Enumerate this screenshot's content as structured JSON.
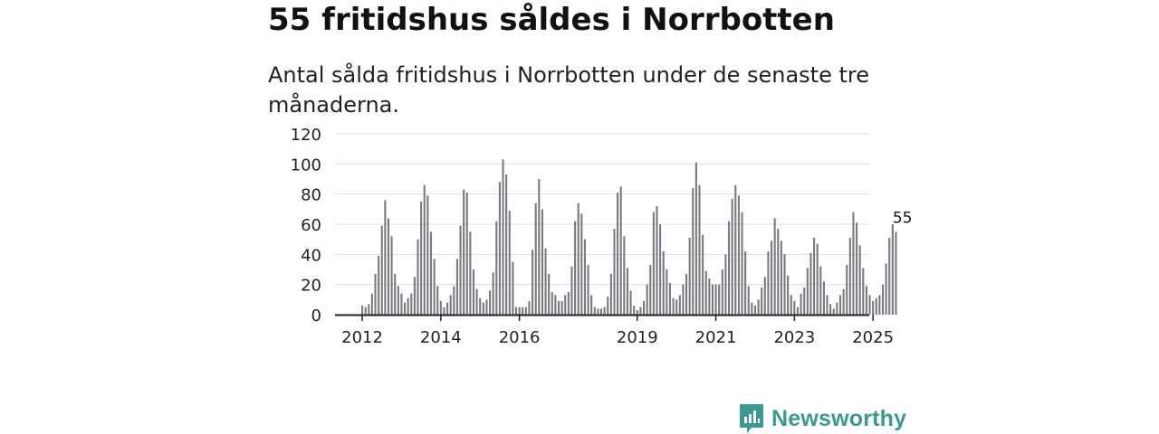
{
  "header": {
    "title": "55 fritidshus såldes i Norrbotten",
    "subtitle": "Antal sålda fritidshus i Norrbotten under de senaste tre månaderna."
  },
  "brand": {
    "name": "Newsworthy"
  },
  "colors": {
    "bar": "#7b7a80",
    "highlight": "#27a59c",
    "grid": "#dddddd",
    "axis": "#222222",
    "brand": "#3a9a93"
  },
  "chart_data": {
    "type": "bar",
    "title": "",
    "xlabel": "",
    "ylabel": "",
    "ylim": [
      0,
      120
    ],
    "yticks": [
      0,
      20,
      40,
      60,
      80,
      100,
      120
    ],
    "grid": true,
    "x_start": "2012-01",
    "x_end": "2025-10",
    "xtick_labels": [
      "2012",
      "2014",
      "2016",
      "2019",
      "2021",
      "2023",
      "2025"
    ],
    "values": [
      6,
      5,
      7,
      14,
      27,
      39,
      59,
      76,
      64,
      52,
      27,
      19,
      14,
      8,
      11,
      14,
      25,
      50,
      75,
      86,
      79,
      55,
      37,
      19,
      9,
      5,
      8,
      13,
      19,
      37,
      59,
      83,
      81,
      55,
      30,
      17,
      11,
      8,
      10,
      16,
      28,
      62,
      88,
      103,
      93,
      69,
      35,
      5,
      5,
      5,
      5,
      9,
      43,
      74,
      90,
      70,
      44,
      27,
      15,
      13,
      9,
      9,
      13,
      15,
      32,
      62,
      74,
      67,
      50,
      33,
      13,
      5,
      4,
      4,
      5,
      12,
      27,
      57,
      81,
      85,
      52,
      31,
      16,
      6,
      3,
      5,
      9,
      20,
      33,
      68,
      72,
      60,
      42,
      30,
      21,
      11,
      10,
      13,
      20,
      27,
      51,
      84,
      101,
      86,
      53,
      29,
      24,
      20,
      20,
      20,
      30,
      40,
      62,
      77,
      86,
      79,
      68,
      42,
      19,
      8,
      6,
      10,
      18,
      25,
      42,
      49,
      64,
      57,
      49,
      40,
      26,
      13,
      9,
      5,
      14,
      18,
      31,
      41,
      51,
      47,
      32,
      22,
      13,
      7,
      4,
      8,
      13,
      17,
      33,
      51,
      68,
      61,
      46,
      31,
      19,
      13,
      9,
      11,
      13,
      20,
      34,
      51,
      60,
      55
    ],
    "highlight": {
      "date": "2025-10",
      "value": 55,
      "label": "55"
    }
  }
}
